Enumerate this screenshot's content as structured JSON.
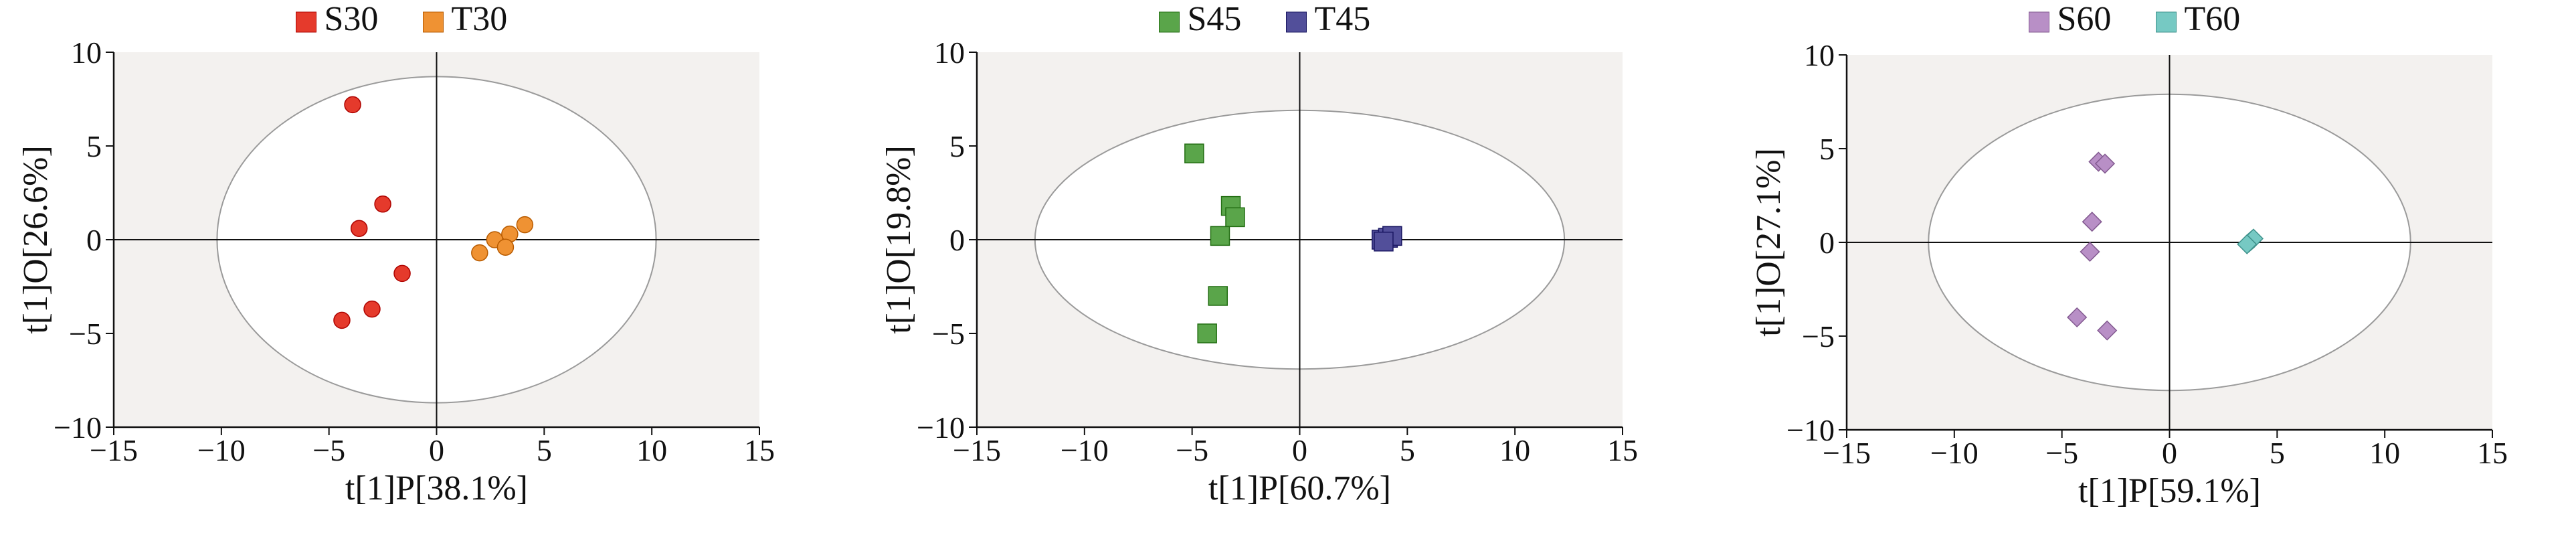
{
  "colors": {
    "plot_bg": "#f3f1ef",
    "S30": "#e53a2c",
    "T30": "#ef9233",
    "S45": "#5aa54a",
    "T45": "#524f9a",
    "S60": "#b88fc6",
    "T60": "#76c9c3",
    "ellipse": "#9a9a9a"
  },
  "chart_data": [
    {
      "type": "scatter",
      "title": "",
      "xlabel": "t[1]P[38.1%]",
      "ylabel": "t[1]O[26.6%]",
      "xlim": [
        -15,
        15
      ],
      "ylim": [
        -10,
        10
      ],
      "xticks": [
        "−15",
        "−10",
        "−5",
        "0",
        "5",
        "10",
        "15"
      ],
      "yticks": [
        "10",
        "5",
        "0",
        "−5",
        "−10"
      ],
      "grid": false,
      "legend_position": "top",
      "ellipse": {
        "cx": 0,
        "cy": 0,
        "rx": 10.2,
        "ry": 8.7
      },
      "series": [
        {
          "name": "S30",
          "marker": "circle",
          "color": "#e53a2c",
          "points": [
            [
              -3.9,
              7.2
            ],
            [
              -2.5,
              1.9
            ],
            [
              -3.6,
              0.6
            ],
            [
              -1.6,
              -1.8
            ],
            [
              -3.0,
              -3.7
            ],
            [
              -4.4,
              -4.3
            ]
          ]
        },
        {
          "name": "T30",
          "marker": "circle",
          "color": "#ef9233",
          "points": [
            [
              4.1,
              0.8
            ],
            [
              3.4,
              0.3
            ],
            [
              2.7,
              0.0
            ],
            [
              3.2,
              -0.4
            ],
            [
              2.0,
              -0.7
            ]
          ]
        }
      ]
    },
    {
      "type": "scatter",
      "title": "",
      "xlabel": "t[1]P[60.7%]",
      "ylabel": "t[1]O[19.8%]",
      "xlim": [
        -15,
        15
      ],
      "ylim": [
        -10,
        10
      ],
      "xticks": [
        "−15",
        "−10",
        "−5",
        "0",
        "5",
        "10",
        "15"
      ],
      "yticks": [
        "10",
        "5",
        "0",
        "−5",
        "−10"
      ],
      "grid": false,
      "legend_position": "top",
      "ellipse": {
        "cx": 0,
        "cy": 0,
        "rx": 12.3,
        "ry": 6.9
      },
      "series": [
        {
          "name": "S45",
          "marker": "square",
          "color": "#5aa54a",
          "points": [
            [
              -4.9,
              4.6
            ],
            [
              -3.2,
              1.8
            ],
            [
              -3.0,
              1.2
            ],
            [
              -3.7,
              0.2
            ],
            [
              -3.8,
              -3.0
            ],
            [
              -4.3,
              -5.0
            ]
          ]
        },
        {
          "name": "T45",
          "marker": "square",
          "color": "#524f9a",
          "points": [
            [
              3.8,
              0.0
            ],
            [
              4.1,
              0.1
            ],
            [
              4.3,
              0.2
            ],
            [
              3.9,
              -0.1
            ]
          ]
        }
      ]
    },
    {
      "type": "scatter",
      "title": "",
      "xlabel": "t[1]P[59.1%]",
      "ylabel": "t[1]O[27.1%]",
      "xlim": [
        -15,
        15
      ],
      "ylim": [
        -10,
        10
      ],
      "xticks": [
        "−15",
        "−10",
        "−5",
        "0",
        "5",
        "10",
        "15"
      ],
      "yticks": [
        "10",
        "5",
        "0",
        "−5",
        "−10"
      ],
      "grid": false,
      "legend_position": "top",
      "ellipse": {
        "cx": 0,
        "cy": 0,
        "rx": 11.2,
        "ry": 7.9
      },
      "series": [
        {
          "name": "S60",
          "marker": "diamond",
          "color": "#b88fc6",
          "points": [
            [
              -3.3,
              4.3
            ],
            [
              -3.0,
              4.2
            ],
            [
              -3.6,
              1.1
            ],
            [
              -3.7,
              -0.5
            ],
            [
              -4.3,
              -4.0
            ],
            [
              -2.9,
              -4.7
            ]
          ]
        },
        {
          "name": "T60",
          "marker": "diamond",
          "color": "#76c9c3",
          "points": [
            [
              3.7,
              0.0
            ],
            [
              3.8,
              0.1
            ],
            [
              3.9,
              0.2
            ],
            [
              3.6,
              -0.1
            ]
          ]
        }
      ]
    }
  ]
}
